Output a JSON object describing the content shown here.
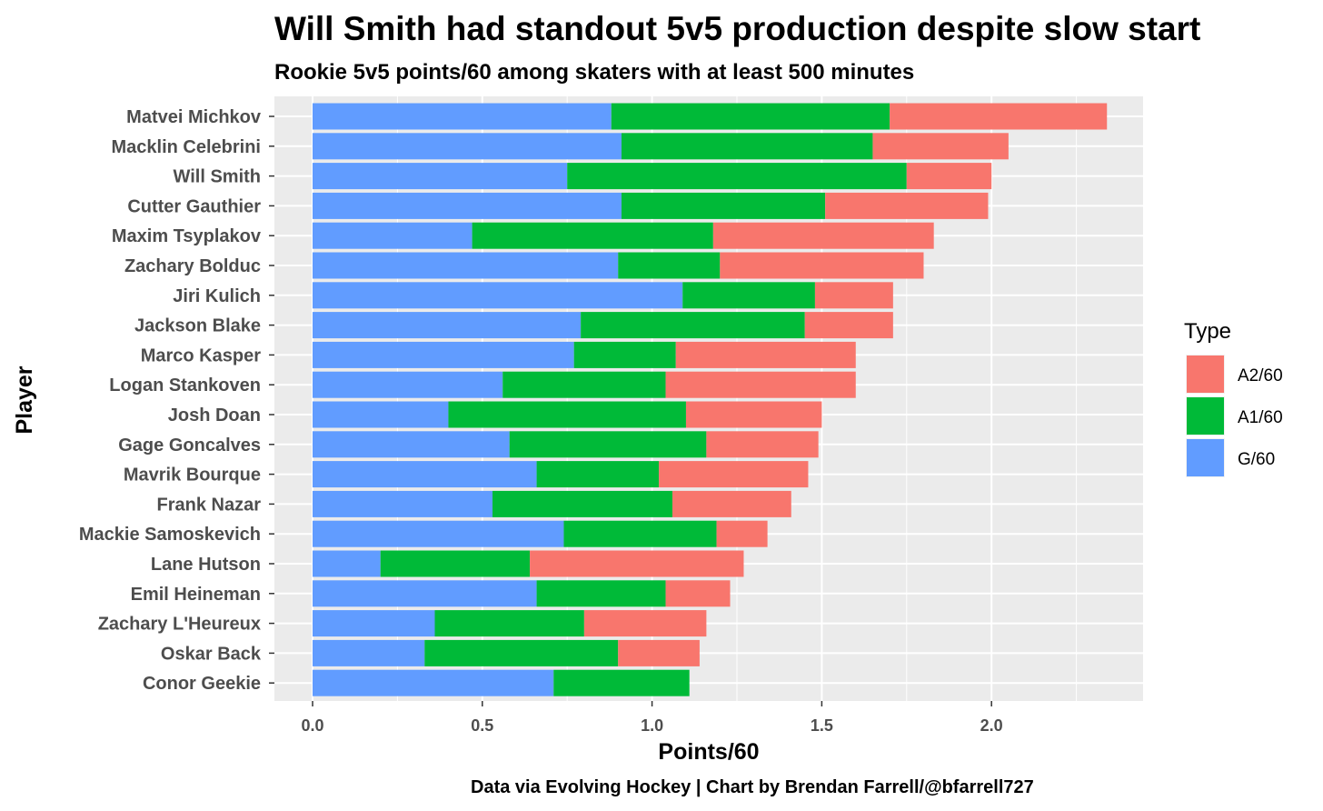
{
  "chart_data": {
    "type": "bar",
    "orientation": "horizontal",
    "stacked": true,
    "title": "Will Smith had standout 5v5 production despite slow start",
    "subtitle": "Rookie 5v5 points/60 among skaters with at least 500 minutes",
    "xlabel": "Points/60",
    "ylabel": "Player",
    "caption": "Data via Evolving Hockey | Chart by Brendan Farrell/@bfarrell727",
    "xlim": [
      0,
      2.45
    ],
    "xticks": [
      "0.0",
      "0.5",
      "1.0",
      "1.5",
      "2.0"
    ],
    "grid": true,
    "legend": {
      "title": "Type",
      "position": "right",
      "entries": [
        {
          "label": "A2/60",
          "color": "#F8766D"
        },
        {
          "label": "A1/60",
          "color": "#00BA38"
        },
        {
          "label": "G/60",
          "color": "#619CFF"
        }
      ]
    },
    "categories": [
      "Matvei Michkov",
      "Macklin Celebrini",
      "Will Smith",
      "Cutter Gauthier",
      "Maxim Tsyplakov",
      "Zachary Bolduc",
      "Jiri Kulich",
      "Jackson Blake",
      "Marco Kasper",
      "Logan Stankoven",
      "Josh Doan",
      "Gage Goncalves",
      "Mavrik Bourque",
      "Frank Nazar",
      "Mackie Samoskevich",
      "Lane Hutson",
      "Emil Heineman",
      "Zachary L'Heureux",
      "Oskar Back",
      "Conor Geekie"
    ],
    "series": [
      {
        "name": "G/60",
        "color": "#619CFF",
        "values": [
          0.88,
          0.91,
          0.75,
          0.91,
          0.47,
          0.9,
          1.09,
          0.79,
          0.77,
          0.56,
          0.4,
          0.58,
          0.66,
          0.53,
          0.74,
          0.2,
          0.66,
          0.36,
          0.33,
          0.71
        ]
      },
      {
        "name": "A1/60",
        "color": "#00BA38",
        "values": [
          0.82,
          0.74,
          1.0,
          0.6,
          0.71,
          0.3,
          0.39,
          0.66,
          0.3,
          0.48,
          0.7,
          0.58,
          0.36,
          0.53,
          0.45,
          0.44,
          0.38,
          0.44,
          0.57,
          0.4
        ]
      },
      {
        "name": "A2/60",
        "color": "#F8766D",
        "values": [
          0.64,
          0.4,
          0.25,
          0.48,
          0.65,
          0.6,
          0.23,
          0.26,
          0.53,
          0.56,
          0.4,
          0.33,
          0.44,
          0.35,
          0.15,
          0.63,
          0.19,
          0.36,
          0.24,
          0.0
        ]
      }
    ]
  }
}
